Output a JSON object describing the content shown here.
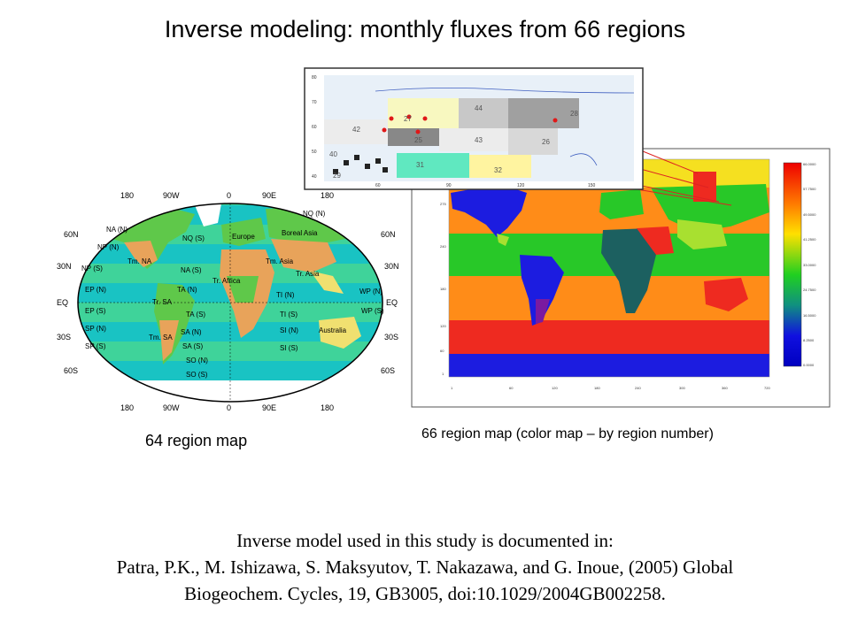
{
  "title": "Inverse modeling: monthly fluxes from 66 regions",
  "left_map": {
    "caption": "64 region map",
    "lon_labels": [
      "180",
      "90W",
      "0",
      "90E",
      "180"
    ],
    "lat_labels_left": [
      "60N",
      "30N",
      "EQ",
      "30S",
      "60S"
    ],
    "lat_labels_right": [
      "60N",
      "30N",
      "EQ",
      "30S",
      "60S"
    ],
    "region_labels": [
      "NP (N)",
      "NP (S)",
      "NA (N)",
      "NA (S)",
      "Tm. NA",
      "NQ (S)",
      "Europe",
      "Boreal Asia",
      "Tm. Asia",
      "Tr. Africa",
      "EP (N)",
      "EP (S)",
      "TA (N)",
      "TA (S)",
      "Tm. SA",
      "SA (N)",
      "SA (S)",
      "SO (N)",
      "SO (S)",
      "TI (N)",
      "TI (S)",
      "SI (N)",
      "SI (S)",
      "WP (N)",
      "WP (S)",
      "SP (N)",
      "SP (S)",
      "Australia",
      "Tr. Asia",
      "Tr. SA",
      "NQ (N)"
    ]
  },
  "right_map": {
    "caption": "66 region map (color map – by region number)",
    "y_ticks": [
      "275",
      "240",
      "180",
      "120",
      "60",
      "1"
    ],
    "x_ticks": [
      "1",
      "60",
      "120",
      "180",
      "240",
      "300",
      "360",
      "720"
    ],
    "colorbar_ticks": [
      "66.0000",
      "57.7500",
      "49.5000",
      "41.2500",
      "33.0000",
      "24.7500",
      "16.5000",
      "8.2500",
      "0.0000"
    ]
  },
  "inset": {
    "y_labels": [
      "80",
      "70",
      "60",
      "50",
      "40"
    ],
    "x_labels": [
      "60",
      "90",
      "120",
      "150"
    ],
    "region_numbers": [
      "28",
      "44",
      "27",
      "42",
      "25",
      "43",
      "26",
      "40",
      "31",
      "32",
      "29"
    ]
  },
  "reference": {
    "line1": "Inverse model used in this study is documented in:",
    "line2": "Patra, P.K., M. Ishizawa, S. Maksyutov, T. Nakazawa, and G. Inoue, (2005) Global",
    "line3": "Biogeochem. Cycles, 19, GB3005, doi:10.1029/2004GB002258."
  },
  "colors": {
    "ocean_band_a": "#19c3c3",
    "ocean_band_b": "#3fd39a",
    "land_green": "#5fc84a",
    "land_orange": "#e8a35a",
    "land_yellow": "#f0e070",
    "map_blue": "#1c1ce0",
    "map_red": "#ee2a20",
    "map_orange": "#ff8c18",
    "map_yellow": "#f5e020",
    "map_green": "#28c828",
    "map_lime": "#a8e030"
  }
}
